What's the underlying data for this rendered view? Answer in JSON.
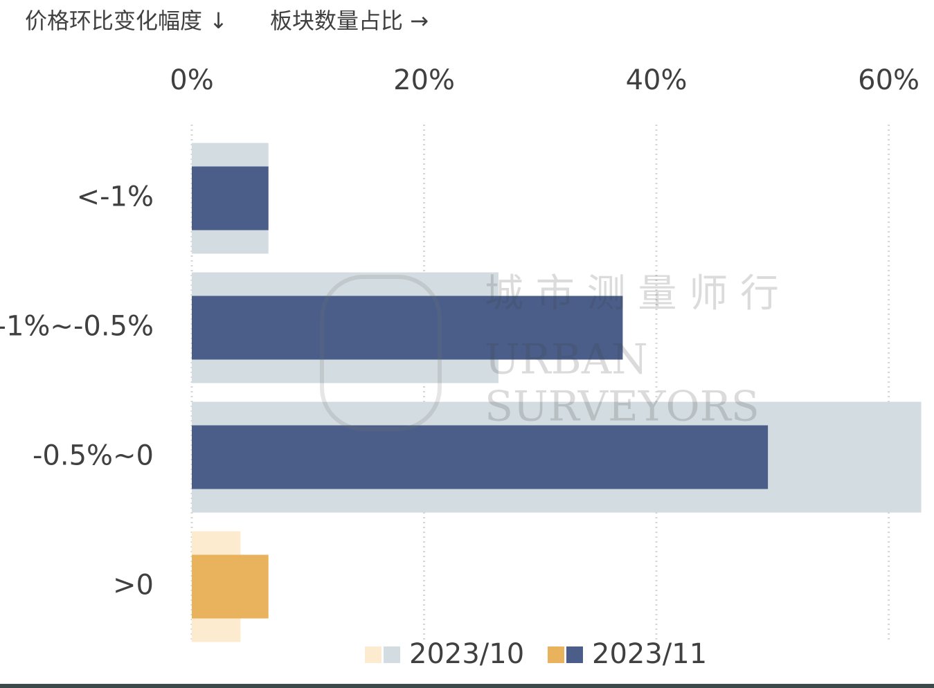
{
  "chart_data": {
    "type": "bar",
    "orientation": "horizontal",
    "y_label": "价格环比变化幅度 ↓",
    "x_label": "板块数量占比 →",
    "categories": [
      "<-1%",
      "-1%~-0.5%",
      "-0.5%~0",
      ">0"
    ],
    "series": [
      {
        "name": "2023/10",
        "colors": [
          "#d3dce0",
          "#d3dce0",
          "#d3dce0",
          "#fdebd0"
        ],
        "values": [
          6.6,
          26.4,
          62.8,
          4.2
        ]
      },
      {
        "name": "2023/11",
        "colors": [
          "#4a5e89",
          "#4a5e89",
          "#4a5e89",
          "#e9b35e"
        ],
        "values": [
          6.6,
          37.1,
          49.6,
          6.6
        ]
      }
    ],
    "xlim": [
      0,
      63.6
    ],
    "xticks": [
      {
        "value": 0,
        "label": "0%"
      },
      {
        "value": 20,
        "label": "20%"
      },
      {
        "value": 40,
        "label": "40%"
      },
      {
        "value": 60,
        "label": "60%"
      }
    ],
    "grid": true,
    "watermark": [
      "城 市 测 量 师 行",
      "URBAN",
      "SURVEYORS"
    ]
  }
}
